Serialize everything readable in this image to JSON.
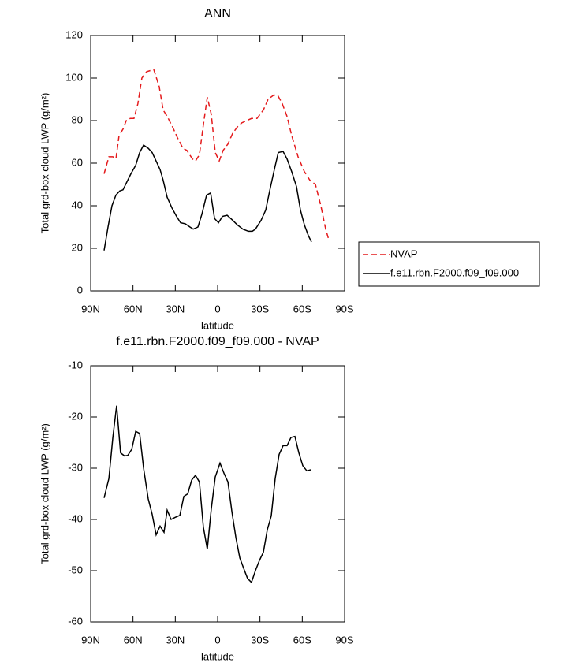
{
  "chart_data": [
    {
      "type": "line",
      "title": "ANN",
      "xlabel": "latitude",
      "ylabel": "Total grd-box cloud LWP (g/m²)",
      "xlim": [
        90,
        -90
      ],
      "xticks": [
        {
          "value": 90,
          "label": "90N"
        },
        {
          "value": 60,
          "label": "60N"
        },
        {
          "value": 30,
          "label": "30N"
        },
        0,
        {
          "value": -30,
          "label": "30S"
        },
        {
          "value": -60,
          "label": "60S"
        },
        {
          "value": -90,
          "label": "90S"
        }
      ],
      "ylim": [
        0,
        120
      ],
      "yticks": [
        0,
        20,
        40,
        60,
        80,
        100,
        120
      ],
      "legend": "outside-right",
      "series": [
        {
          "name": "NVAP",
          "color": "#e41a1c",
          "dashed": true,
          "x": [
            80.5,
            77.1,
            74.3,
            72.1,
            69.9,
            67.1,
            64.8,
            62.0,
            59.3,
            56.5,
            53.7,
            50.3,
            45.3,
            41.4,
            38.6,
            35.8,
            31.9,
            28.5,
            24.6,
            21.8,
            17.9,
            15.7,
            12.9,
            10.1,
            7.3,
            4.5,
            1.7,
            -1.1,
            -3.9,
            -7.3,
            -10.6,
            -14.0,
            -17.3,
            -20.7,
            -24.0,
            -27.9,
            -32.4,
            -35.8,
            -39.7,
            -42.5,
            -45.8,
            -49.2,
            -52.5,
            -57.0,
            -61.5,
            -65.4,
            -69.3,
            -73.2,
            -76.6,
            -78.8
          ],
          "values": [
            55,
            63,
            63,
            62,
            73,
            76,
            80,
            81,
            81,
            88,
            100,
            103,
            104,
            96,
            85,
            82,
            77,
            72,
            67,
            66,
            62,
            61,
            64,
            78,
            91,
            83,
            65,
            61,
            66,
            69,
            74,
            77,
            79,
            80,
            81,
            81,
            85,
            90,
            92,
            92,
            88,
            82,
            73,
            63,
            56,
            52,
            50,
            40,
            29,
            24
          ]
        },
        {
          "name": "f.e11.rbn.F2000.f09_f09.000",
          "color": "#000000",
          "dashed": false,
          "x": [
            80.5,
            77.7,
            74.9,
            72.1,
            69.3,
            67.1,
            63.7,
            61.5,
            58.1,
            55.3,
            52.5,
            49.2,
            46.4,
            43.6,
            40.8,
            38.6,
            35.8,
            32.4,
            29.1,
            26.3,
            22.9,
            19.6,
            17.3,
            14.0,
            11.2,
            7.8,
            5.0,
            2.2,
            -0.6,
            -3.4,
            -6.7,
            -10.1,
            -14.0,
            -17.9,
            -21.8,
            -24.6,
            -26.8,
            -30.7,
            -34.1,
            -36.9,
            -40.2,
            -43.0,
            -46.4,
            -49.2,
            -52.5,
            -55.9,
            -58.7,
            -61.5,
            -64.3,
            -66.5
          ],
          "values": [
            19,
            30,
            40,
            45,
            47,
            47.5,
            52,
            55,
            59,
            65,
            68.5,
            67,
            65,
            61,
            57,
            52,
            44,
            39,
            35,
            32,
            31.5,
            30,
            29,
            30,
            36,
            45,
            46,
            34,
            32,
            35,
            35.5,
            33.5,
            31,
            29,
            28,
            28,
            29,
            33,
            38,
            47,
            57,
            65,
            65.5,
            62,
            56,
            49,
            38,
            31,
            26,
            23
          ]
        }
      ]
    },
    {
      "type": "line",
      "title": "f.e11.rbn.F2000.f09_f09.000 - NVAP",
      "xlabel": "latitude",
      "ylabel": "Total grd-box cloud LWP (g/m²)",
      "xlim": [
        90,
        -90
      ],
      "xticks": [
        {
          "value": 90,
          "label": "90N"
        },
        {
          "value": 60,
          "label": "60N"
        },
        {
          "value": 30,
          "label": "30N"
        },
        0,
        {
          "value": -30,
          "label": "30S"
        },
        {
          "value": -60,
          "label": "60S"
        },
        {
          "value": -90,
          "label": "90S"
        }
      ],
      "ylim": [
        -60,
        -10
      ],
      "yticks": [
        -60,
        -50,
        -40,
        -30,
        -20,
        -10
      ],
      "series": [
        {
          "color": "#000000",
          "dashed": false,
          "x": [
            80.5,
            77.1,
            74.3,
            71.6,
            68.8,
            66.0,
            63.7,
            60.9,
            58.1,
            55.3,
            52.5,
            49.2,
            46.4,
            43.6,
            40.8,
            38.0,
            35.8,
            33.0,
            30.2,
            26.8,
            24.0,
            21.2,
            18.4,
            15.7,
            12.9,
            10.1,
            7.3,
            4.5,
            1.7,
            -1.7,
            -4.5,
            -7.3,
            -10.1,
            -12.9,
            -15.7,
            -18.4,
            -21.2,
            -24.0,
            -26.8,
            -29.6,
            -32.4,
            -35.2,
            -38.0,
            -40.8,
            -43.6,
            -46.4,
            -49.2,
            -52.0,
            -54.8,
            -57.6,
            -60.4,
            -63.2,
            -66.0
          ],
          "values": [
            -35.8,
            -32,
            -24,
            -17.8,
            -27,
            -27.6,
            -27.5,
            -26.3,
            -22.8,
            -23.2,
            -30,
            -36,
            -39,
            -43,
            -41.3,
            -42.5,
            -38.2,
            -40,
            -39.6,
            -39.2,
            -35.5,
            -35,
            -32.3,
            -31.4,
            -32.7,
            -41.5,
            -45.8,
            -38,
            -31.7,
            -29,
            -31,
            -32.7,
            -38.5,
            -43.5,
            -47.5,
            -49.5,
            -51.5,
            -52.3,
            -50,
            -48,
            -46.4,
            -42,
            -39.3,
            -32,
            -27.3,
            -25.6,
            -25.6,
            -24,
            -23.8,
            -27,
            -29.5,
            -30.5,
            -30.3
          ]
        }
      ]
    }
  ]
}
